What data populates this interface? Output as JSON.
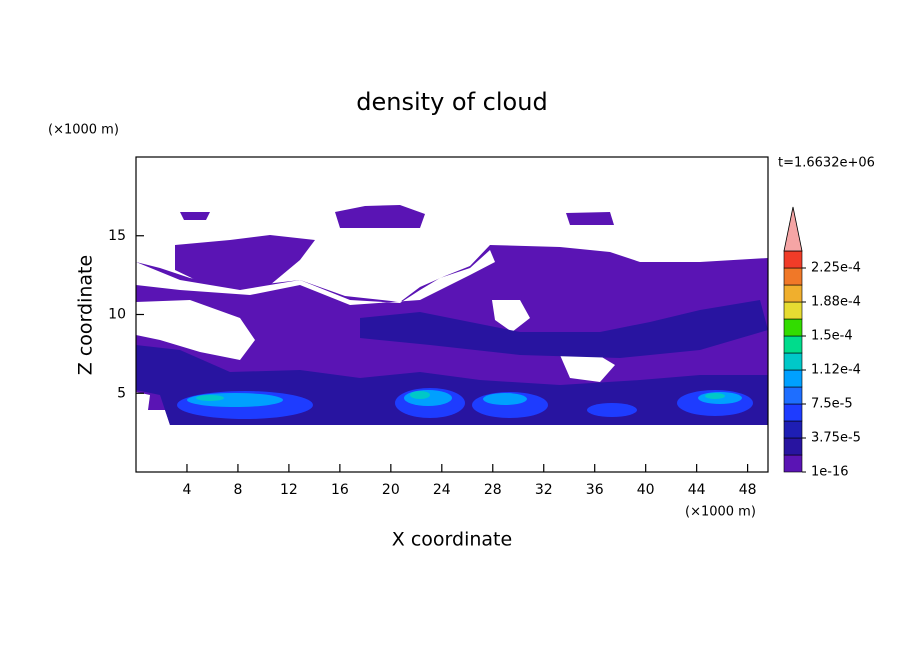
{
  "chart_data": {
    "type": "contour",
    "title": "density of cloud",
    "x_label": "X coordinate",
    "y_label": "Z coordinate",
    "x_unit": "(×1000 m)",
    "y_unit": "(×1000 m)",
    "time_label": "t=1.6632e+06",
    "xlim": [
      0,
      49.6
    ],
    "ylim": [
      0,
      20
    ],
    "xticks": [
      4,
      8,
      12,
      16,
      20,
      24,
      28,
      32,
      36,
      40,
      44,
      48
    ],
    "yticks": [
      5,
      10,
      15
    ],
    "colorbar": {
      "levels": [
        1e-16,
        {
          "value": 3.75e-05,
          "label": "3.75e-5"
        },
        {
          "value": 7.5e-05,
          "label": "7.5e-5"
        },
        {
          "value": 0.000112,
          "label": "1.12e-4"
        },
        {
          "value": 0.00015,
          "label": "1.5e-4"
        },
        {
          "value": 0.000188,
          "label": "1.88e-4"
        },
        {
          "value": 0.000225,
          "label": "2.25e-4"
        }
      ],
      "colors": [
        "#5a14b4",
        "#2814a0",
        "#1e1eb4",
        "#1e3cff",
        "#1e6eff",
        "#00a0ff",
        "#00c8c8",
        "#00dc8c",
        "#32dc00",
        "#e6dc32",
        "#f0af2d",
        "#f07828",
        "#f03c28"
      ],
      "extend_color": "#f5a5a5"
    }
  }
}
